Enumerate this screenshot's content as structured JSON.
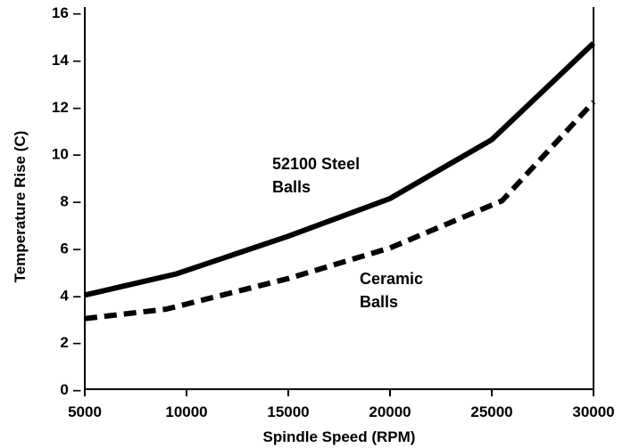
{
  "chart_data": {
    "type": "line",
    "xlabel": "Spindle Speed (RPM)",
    "ylabel": "Temperature Rise (C)",
    "xlim": [
      5000,
      30000
    ],
    "ylim": [
      0,
      16
    ],
    "grid": false,
    "x_ticks": [
      5000,
      10000,
      15000,
      20000,
      25000,
      30000
    ],
    "y_ticks": [
      0,
      2,
      4,
      6,
      8,
      10,
      12,
      14,
      16
    ],
    "series": [
      {
        "style": "solid",
        "color": "#000000",
        "points": [
          [
            5000,
            4.0
          ],
          [
            9500,
            4.9
          ],
          [
            15000,
            6.5
          ],
          [
            20000,
            8.1
          ],
          [
            25000,
            10.6
          ],
          [
            30000,
            14.7
          ]
        ]
      },
      {
        "style": "dashed",
        "color": "#000000",
        "points": [
          [
            5000,
            3.0
          ],
          [
            9000,
            3.4
          ],
          [
            15000,
            4.7
          ],
          [
            20000,
            6.0
          ],
          [
            25500,
            8.0
          ],
          [
            30000,
            12.2
          ]
        ]
      }
    ],
    "annotations": [
      {
        "lines": [
          "52100 Steel",
          "Balls"
        ],
        "target_series": 0
      },
      {
        "lines": [
          "Ceramic",
          "Balls"
        ],
        "target_series": 1
      }
    ]
  }
}
